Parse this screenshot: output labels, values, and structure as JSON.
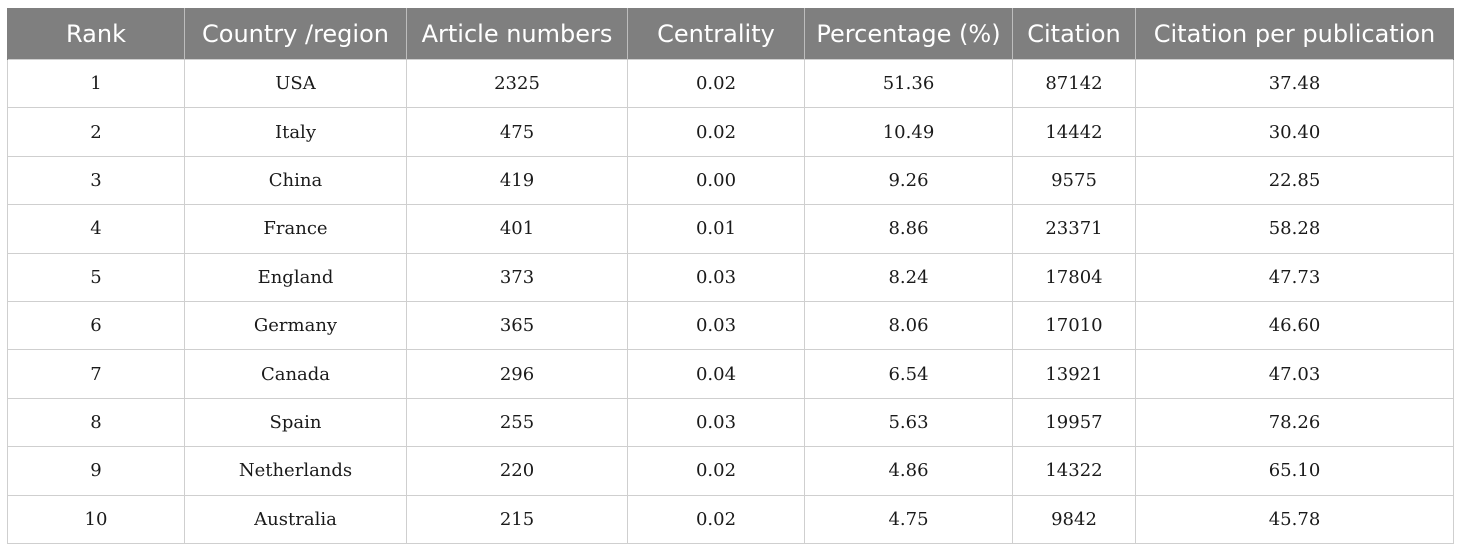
{
  "table": {
    "columns": [
      "Rank",
      "Country /region",
      "Article numbers",
      "Centrality",
      "Percentage (%)",
      "Citation",
      "Citation per publication"
    ],
    "rows": [
      [
        "1",
        "USA",
        "2325",
        "0.02",
        "51.36",
        "87142",
        "37.48"
      ],
      [
        "2",
        "Italy",
        "475",
        "0.02",
        "10.49",
        "14442",
        "30.40"
      ],
      [
        "3",
        "China",
        "419",
        "0.00",
        "9.26",
        "9575",
        "22.85"
      ],
      [
        "4",
        "France",
        "401",
        "0.01",
        "8.86",
        "23371",
        "58.28"
      ],
      [
        "5",
        "England",
        "373",
        "0.03",
        "8.24",
        "17804",
        "47.73"
      ],
      [
        "6",
        "Germany",
        "365",
        "0.03",
        "8.06",
        "17010",
        "46.60"
      ],
      [
        "7",
        "Canada",
        "296",
        "0.04",
        "6.54",
        "13921",
        "47.03"
      ],
      [
        "8",
        "Spain",
        "255",
        "0.03",
        "5.63",
        "19957",
        "78.26"
      ],
      [
        "9",
        "Netherlands",
        "220",
        "0.02",
        "4.86",
        "14322",
        "65.10"
      ],
      [
        "10",
        "Australia",
        "215",
        "0.02",
        "4.75",
        "9842",
        "45.78"
      ]
    ]
  },
  "colors": {
    "header_background": "#7f7f7f",
    "header_text": "#ffffff",
    "grid_line": "#cfcfcf"
  }
}
